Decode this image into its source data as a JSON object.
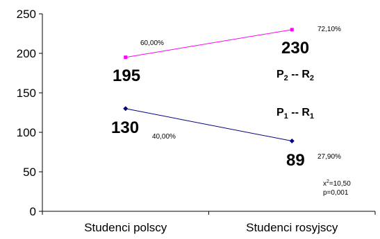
{
  "chart_data": {
    "type": "line",
    "categories": [
      "Studenci polscy",
      "Studenci rosyjscy"
    ],
    "ylim": [
      0,
      250
    ],
    "yticks": [
      0,
      50,
      100,
      150,
      200,
      250
    ],
    "grid": false,
    "series": [
      {
        "values": [
          195,
          230
        ],
        "value_labels": [
          "195",
          "230"
        ],
        "percent_labels": [
          "60,00%",
          "72,10%"
        ],
        "color": "#FF00FF"
      },
      {
        "values": [
          130,
          89
        ],
        "value_labels": [
          "130",
          "89"
        ],
        "percent_labels": [
          "40,00%",
          "27,90%"
        ],
        "color": "#000080"
      }
    ],
    "annotations": {
      "pair_top": {
        "p": "P",
        "p_sub": "2",
        "sep": " -- ",
        "r": "R",
        "r_sub": "2"
      },
      "pair_bottom": {
        "p": "P",
        "p_sub": "1",
        "sep": " -- ",
        "r": "R",
        "r_sub": "1"
      },
      "chi_square": {
        "prefix": "x",
        "sup": "2",
        "value": "=10,50"
      },
      "p_value": "p=0,001"
    }
  }
}
